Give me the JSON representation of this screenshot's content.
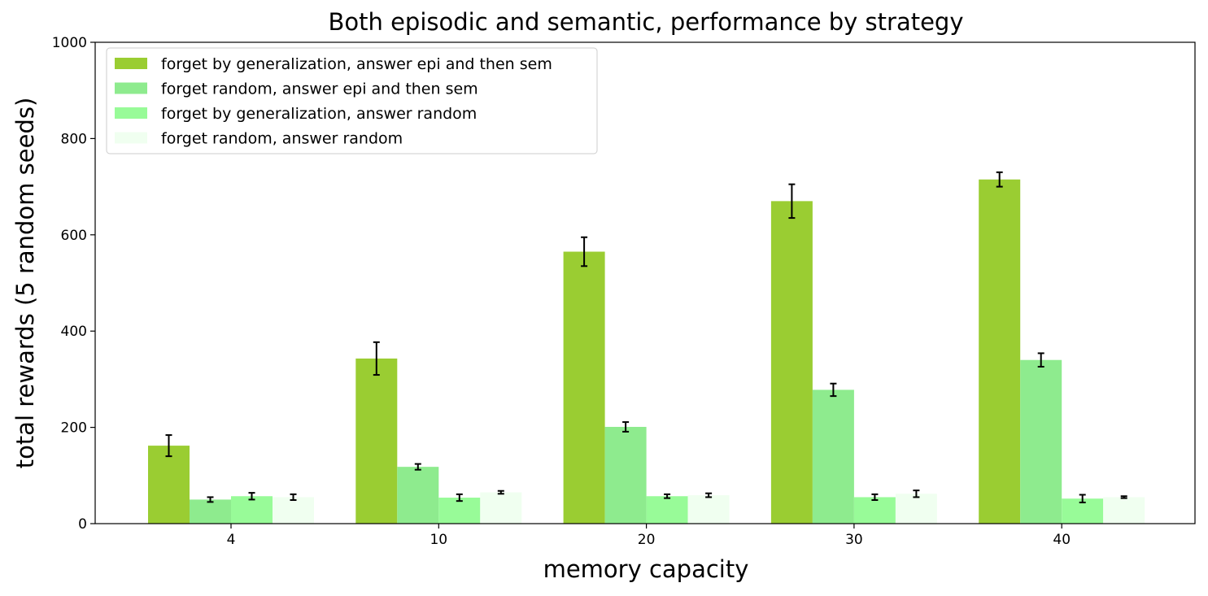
{
  "chart_data": {
    "type": "bar",
    "title": "Both episodic and semantic, performance by strategy",
    "xlabel": "memory capacity",
    "ylabel": "total rewards (5 random seeds)",
    "ylim": [
      0,
      1000
    ],
    "yticks": [
      0,
      200,
      400,
      600,
      800,
      1000
    ],
    "categories": [
      "4",
      "10",
      "20",
      "30",
      "40"
    ],
    "legend_position": "top-left",
    "grid": false,
    "series": [
      {
        "name": "forget by generalization, answer epi and then sem",
        "color": "#9acd32",
        "values": [
          162,
          343,
          565,
          670,
          715
        ],
        "errors": [
          22,
          34,
          30,
          35,
          15
        ]
      },
      {
        "name": "forget random, answer epi and then sem",
        "color": "#8eeb8e",
        "values": [
          50,
          118,
          201,
          278,
          340
        ],
        "errors": [
          5,
          6,
          10,
          13,
          14
        ]
      },
      {
        "name": "forget by generalization, answer random",
        "color": "#98fb98",
        "values": [
          57,
          54,
          57,
          55,
          52
        ],
        "errors": [
          7,
          7,
          4,
          6,
          8
        ]
      },
      {
        "name": "forget random, answer random",
        "color": "#f0fff0",
        "values": [
          55,
          65,
          59,
          62,
          55
        ],
        "errors": [
          6,
          3,
          4,
          7,
          2
        ]
      }
    ]
  }
}
